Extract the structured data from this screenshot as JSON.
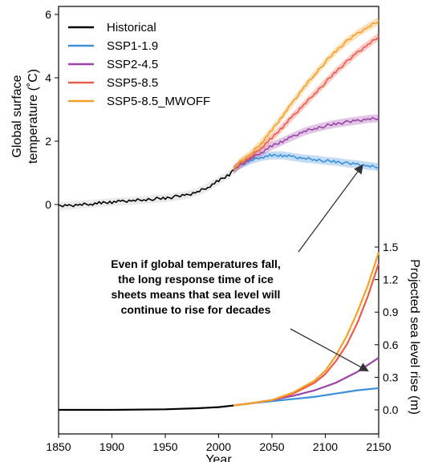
{
  "chart_data": {
    "type": "line",
    "xlabel": "Year",
    "xlim": [
      1850,
      2150
    ],
    "xticks": [
      1850,
      1900,
      1950,
      2000,
      2050,
      2100,
      2150
    ],
    "legend_position": "top-left",
    "panels": [
      {
        "id": "temperature",
        "ylabel_lines": [
          "Global surface",
          "temperature (˚C)"
        ],
        "yaxis_side": "left",
        "ylim": [
          -0.3,
          6.1
        ],
        "yticks": [
          0,
          2,
          4,
          6
        ],
        "series": [
          {
            "name": "Historical",
            "color": "#000000",
            "x": [
              1850,
              1860,
              1870,
              1880,
              1890,
              1900,
              1910,
              1920,
              1930,
              1940,
              1950,
              1960,
              1970,
              1980,
              1990,
              2000,
              2010,
              2014
            ],
            "y": [
              -0.05,
              -0.03,
              0.0,
              0.02,
              0.05,
              0.08,
              0.1,
              0.12,
              0.15,
              0.18,
              0.2,
              0.25,
              0.3,
              0.4,
              0.55,
              0.75,
              0.95,
              1.1
            ]
          },
          {
            "name": "SSP1-1.9",
            "color": "#3a8fdc",
            "x": [
              2014,
              2020,
              2030,
              2040,
              2050,
              2060,
              2070,
              2080,
              2090,
              2100,
              2110,
              2120,
              2130,
              2140,
              2150
            ],
            "y": [
              1.1,
              1.25,
              1.4,
              1.5,
              1.55,
              1.55,
              1.5,
              1.45,
              1.42,
              1.38,
              1.35,
              1.3,
              1.27,
              1.22,
              1.18
            ]
          },
          {
            "name": "SSP2-4.5",
            "color": "#9b45a8",
            "x": [
              2014,
              2020,
              2030,
              2040,
              2050,
              2060,
              2070,
              2080,
              2090,
              2100,
              2110,
              2120,
              2130,
              2140,
              2150
            ],
            "y": [
              1.1,
              1.25,
              1.45,
              1.65,
              1.85,
              2.0,
              2.15,
              2.3,
              2.4,
              2.48,
              2.55,
              2.6,
              2.65,
              2.7,
              2.72
            ]
          },
          {
            "name": "SSP5-8.5",
            "color": "#ee5a4a",
            "x": [
              2014,
              2020,
              2030,
              2040,
              2050,
              2060,
              2070,
              2080,
              2090,
              2100,
              2110,
              2120,
              2130,
              2140,
              2150
            ],
            "y": [
              1.1,
              1.3,
              1.5,
              1.8,
              2.1,
              2.45,
              2.8,
              3.15,
              3.5,
              3.85,
              4.2,
              4.5,
              4.8,
              5.05,
              5.3
            ]
          },
          {
            "name": "SSP5-8.5_MWOFF",
            "color": "#f2a026",
            "x": [
              2014,
              2020,
              2030,
              2040,
              2050,
              2060,
              2070,
              2080,
              2090,
              2100,
              2110,
              2120,
              2130,
              2140,
              2150
            ],
            "y": [
              1.1,
              1.35,
              1.6,
              1.95,
              2.35,
              2.8,
              3.25,
              3.7,
              4.1,
              4.5,
              4.85,
              5.15,
              5.4,
              5.6,
              5.8
            ]
          }
        ]
      },
      {
        "id": "sea_level",
        "ylabel": "Projected sea level rise (m)",
        "yaxis_side": "right",
        "ylim": [
          -0.05,
          1.6
        ],
        "yticks": [
          "0.0",
          "0.3",
          "0.6",
          "0.9",
          "1.2",
          "1.5"
        ],
        "series": [
          {
            "name": "Historical",
            "color": "#000000",
            "x": [
              1850,
              1900,
              1950,
              1980,
              2000,
              2014
            ],
            "y": [
              0.0,
              0.0,
              0.005,
              0.015,
              0.025,
              0.04
            ]
          },
          {
            "name": "SSP1-1.9",
            "color": "#3a8fdc",
            "x": [
              2014,
              2030,
              2050,
              2070,
              2090,
              2110,
              2130,
              2150
            ],
            "y": [
              0.04,
              0.06,
              0.08,
              0.1,
              0.12,
              0.15,
              0.18,
              0.2
            ]
          },
          {
            "name": "SSP2-4.5",
            "color": "#9b45a8",
            "x": [
              2014,
              2030,
              2050,
              2070,
              2090,
              2110,
              2130,
              2150
            ],
            "y": [
              0.04,
              0.06,
              0.09,
              0.13,
              0.18,
              0.25,
              0.35,
              0.48
            ]
          },
          {
            "name": "SSP5-8.5",
            "color": "#ee5a4a",
            "x": [
              2014,
              2030,
              2050,
              2070,
              2090,
              2100,
              2110,
              2120,
              2130,
              2140,
              2150
            ],
            "y": [
              0.04,
              0.06,
              0.09,
              0.15,
              0.25,
              0.33,
              0.45,
              0.6,
              0.8,
              1.05,
              1.35
            ]
          },
          {
            "name": "SSP5-8.5_MWOFF",
            "color": "#f2a026",
            "x": [
              2014,
              2030,
              2050,
              2070,
              2090,
              2100,
              2110,
              2120,
              2130,
              2140,
              2150
            ],
            "y": [
              0.04,
              0.06,
              0.09,
              0.16,
              0.27,
              0.36,
              0.5,
              0.68,
              0.9,
              1.15,
              1.45
            ]
          }
        ]
      }
    ],
    "annotation": {
      "lines": [
        "Even if global temperatures fall,",
        "the long response time of ice",
        "sheets means that sea level will",
        "continue to rise for decades"
      ],
      "arrow_up_target": {
        "x": 2135,
        "y_temperature": 1.45
      },
      "arrow_down_target": {
        "x": 2140,
        "y_sea_level": 0.3
      }
    }
  }
}
